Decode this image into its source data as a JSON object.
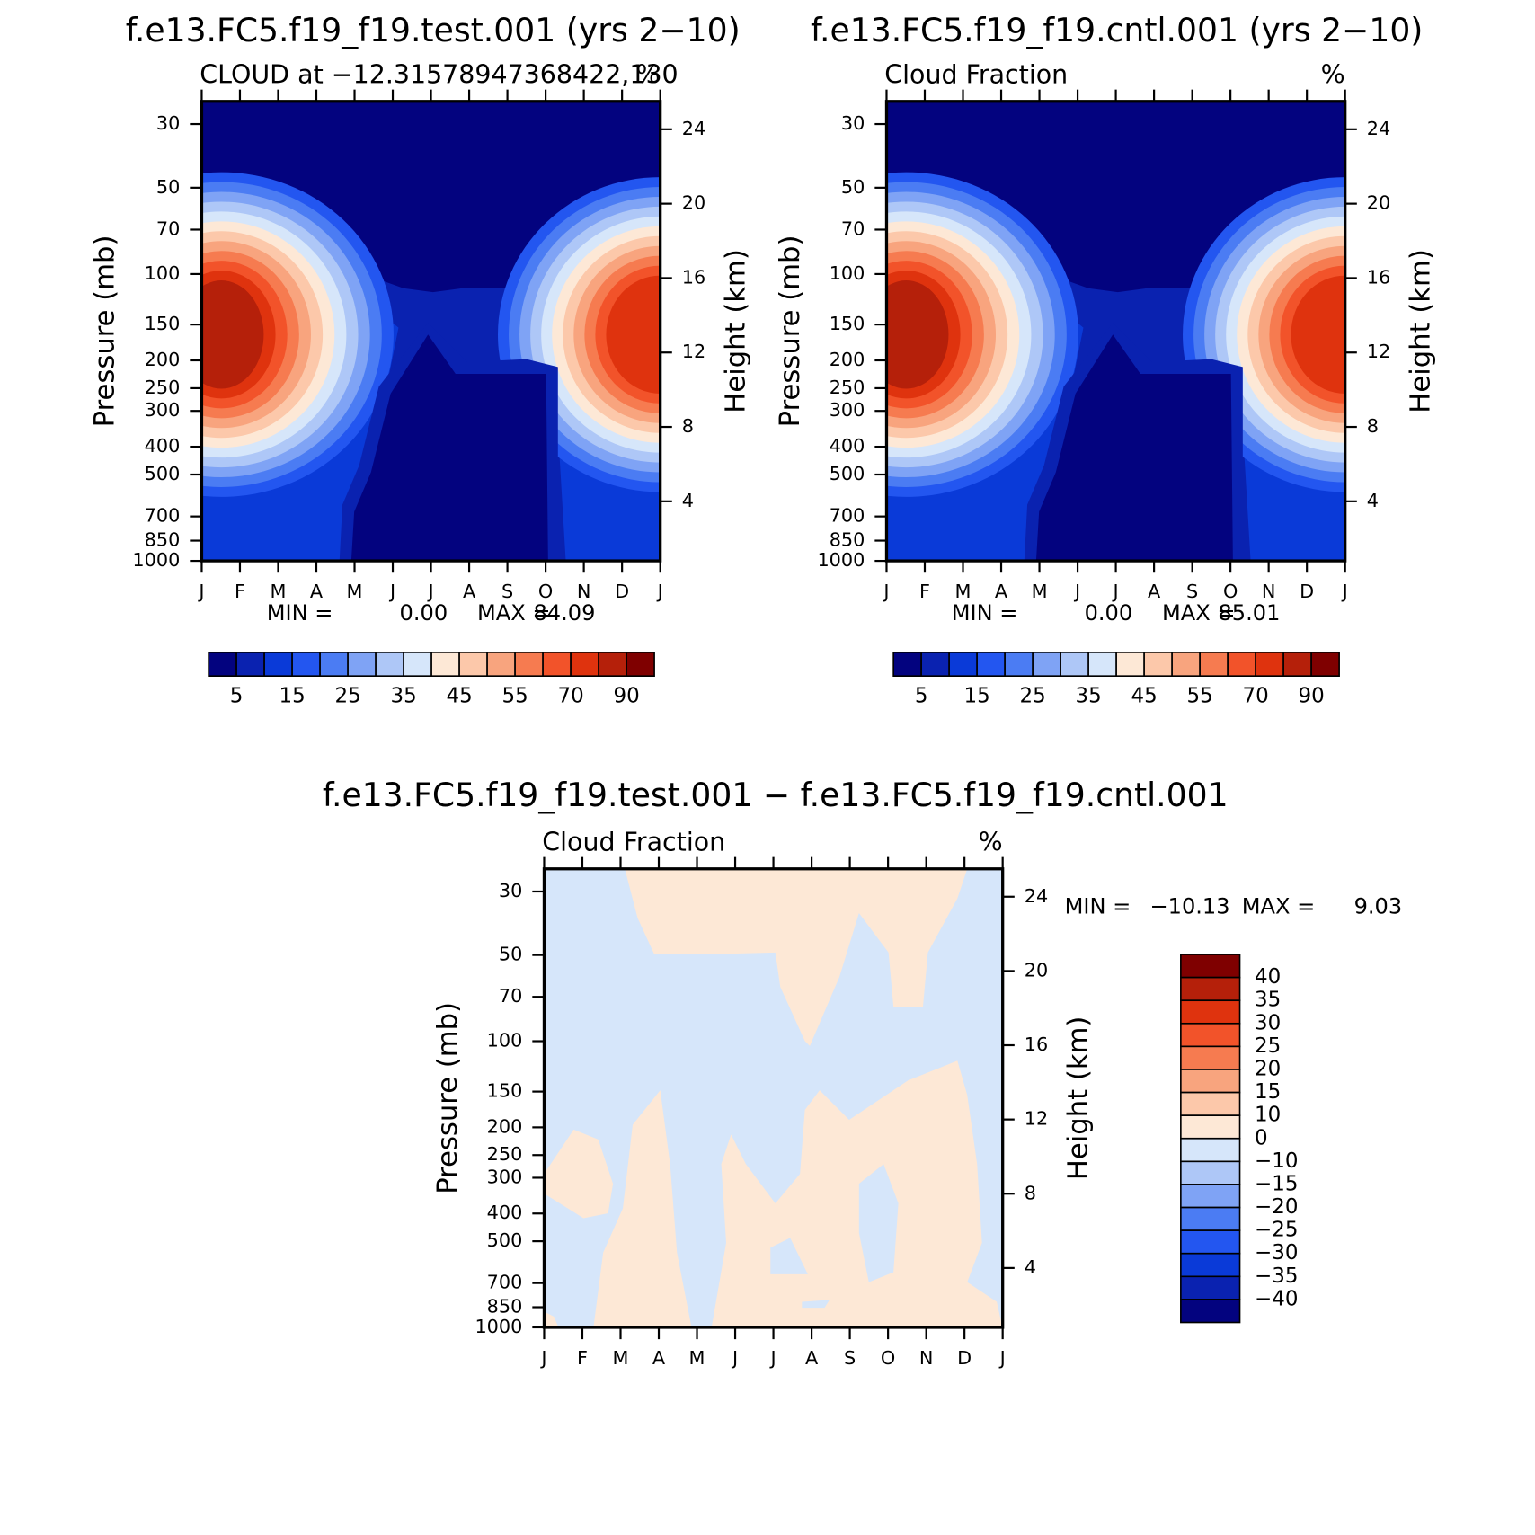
{
  "chart_data": [
    {
      "type": "contour",
      "title": "f.e13.FC5.f19_f19.test.001 (yrs 2−10)",
      "left_string": "CLOUD at −12.31578947368422,130",
      "right_string": "%",
      "y_label": "Pressure (mb)",
      "y2_label": "Height (km)",
      "categories": [
        "J",
        "F",
        "M",
        "A",
        "M",
        "J",
        "J",
        "A",
        "S",
        "O",
        "N",
        "D",
        "J"
      ],
      "ylim": [
        1000,
        25
      ],
      "log_scale": true,
      "yticks": [
        30,
        50,
        70,
        100,
        150,
        200,
        250,
        300,
        400,
        500,
        700,
        850,
        1000
      ],
      "y2lim": [
        0.8,
        25.5
      ],
      "y2ticks": [
        4,
        8,
        12,
        16,
        20,
        24
      ],
      "min_text": "MIN =",
      "min": {
        "value": 0,
        "label": "0.00"
      },
      "max_text": "MAX =",
      "max": 84.09,
      "colorbar": {
        "orientation": "horizontal",
        "colors": [
          "#03037f",
          "#0a22b0",
          "#0a3ad8",
          "#2356f0",
          "#4b7cf3",
          "#7fa3f5",
          "#aec7f7",
          "#d6e6fa",
          "#fde8d6",
          "#fcc8aa",
          "#f8a47e",
          "#f67b50",
          "#f2532a",
          "#df330e",
          "#b5200a",
          "#7f0000"
        ],
        "labels": [
          5,
          15,
          25,
          35,
          45,
          55,
          70,
          90
        ]
      }
    },
    {
      "type": "contour",
      "title": "f.e13.FC5.f19_f19.cntl.001 (yrs 2−10)",
      "left_string": "Cloud Fraction",
      "right_string": "%",
      "y_label": "Pressure (mb)",
      "y2_label": "Height (km)",
      "categories": [
        "J",
        "F",
        "M",
        "A",
        "M",
        "J",
        "J",
        "A",
        "S",
        "O",
        "N",
        "D",
        "J"
      ],
      "ylim": [
        1000,
        25
      ],
      "log_scale": true,
      "yticks": [
        30,
        50,
        70,
        100,
        150,
        200,
        250,
        300,
        400,
        500,
        700,
        850,
        1000
      ],
      "y2lim": [
        0.8,
        25.5
      ],
      "y2ticks": [
        4,
        8,
        12,
        16,
        20,
        24
      ],
      "min_text": "MIN =",
      "min": {
        "value": 0,
        "label": "0.00"
      },
      "max_text": "MAX =",
      "max": 85.01,
      "colorbar": {
        "orientation": "horizontal",
        "colors": [
          "#03037f",
          "#0a22b0",
          "#0a3ad8",
          "#2356f0",
          "#4b7cf3",
          "#7fa3f5",
          "#aec7f7",
          "#d6e6fa",
          "#fde8d6",
          "#fcc8aa",
          "#f8a47e",
          "#f67b50",
          "#f2532a",
          "#df330e",
          "#b5200a",
          "#7f0000"
        ],
        "labels": [
          5,
          15,
          25,
          35,
          45,
          55,
          70,
          90
        ]
      }
    },
    {
      "type": "contour",
      "title": "f.e13.FC5.f19_f19.test.001 − f.e13.FC5.f19_f19.cntl.001",
      "left_string": "Cloud Fraction",
      "right_string": "%",
      "y_label": "Pressure (mb)",
      "y2_label": "Height (km)",
      "categories": [
        "J",
        "F",
        "M",
        "A",
        "M",
        "J",
        "J",
        "A",
        "S",
        "O",
        "N",
        "D",
        "J"
      ],
      "ylim": [
        1000,
        25
      ],
      "log_scale": true,
      "yticks": [
        30,
        50,
        70,
        100,
        150,
        200,
        250,
        300,
        400,
        500,
        700,
        850,
        1000
      ],
      "y2lim": [
        0.8,
        25.5
      ],
      "y2ticks": [
        4,
        8,
        12,
        16,
        20,
        24
      ],
      "min_text": "MIN =",
      "min": {
        "value": -10.13,
        "label": "−10.13"
      },
      "max_text": "MAX =",
      "max": 9.03,
      "colorbar": {
        "orientation": "vertical",
        "colors": [
          "#7f0000",
          "#b5200a",
          "#df330e",
          "#f2532a",
          "#f67b50",
          "#f8a47e",
          "#fcc8aa",
          "#fde8d6",
          "#d6e6fa",
          "#aec7f7",
          "#7fa3f5",
          "#4b7cf3",
          "#2356f0",
          "#0a3ad8",
          "#0a22b0",
          "#03037f"
        ],
        "labels": [
          40,
          35,
          30,
          25,
          20,
          15,
          10,
          0,
          {
            "value": -10,
            "label": "−10"
          },
          {
            "value": -15,
            "label": "−15"
          },
          {
            "value": -20,
            "label": "−20"
          },
          {
            "value": -25,
            "label": "−25"
          },
          {
            "value": -30,
            "label": "−30"
          },
          {
            "value": -35,
            "label": "−35"
          },
          {
            "value": -40,
            "label": "−40"
          }
        ]
      }
    }
  ]
}
